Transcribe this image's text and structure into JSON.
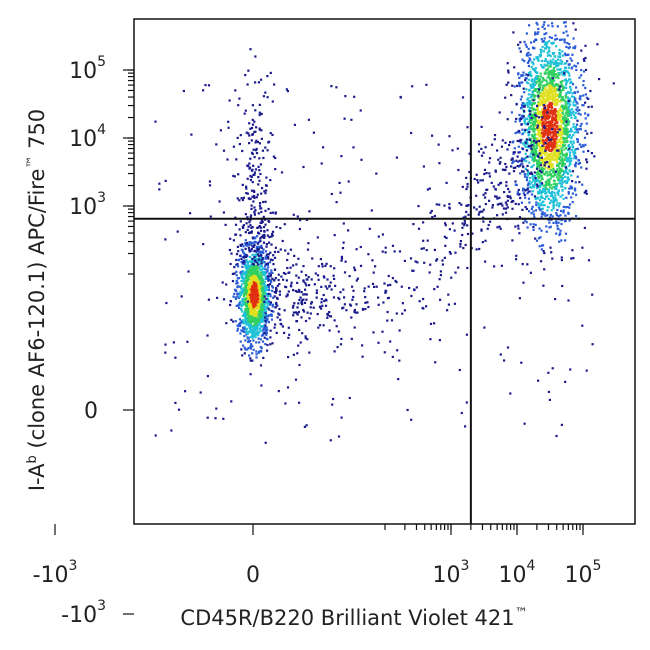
{
  "chart_data": {
    "type": "scatter",
    "title": "",
    "xlabel_parts": [
      "CD45R/B220 Brilliant Violet 421",
      "™"
    ],
    "ylabel_parts": [
      "I-A",
      "b",
      " (clone AF6-120.1) APC/Fire",
      "™",
      " 750"
    ],
    "x_scale": "biexponential",
    "y_scale": "biexponential",
    "x_ticks": [
      {
        "value": -1000,
        "base": "-10",
        "exp": "3"
      },
      {
        "value": 0,
        "base": "0",
        "exp": ""
      },
      {
        "value": 1000,
        "base": "10",
        "exp": "3"
      },
      {
        "value": 10000,
        "base": "10",
        "exp": "4"
      },
      {
        "value": 100000,
        "base": "10",
        "exp": "5"
      }
    ],
    "y_ticks": [
      {
        "value": -1000,
        "base": "-10",
        "exp": "3"
      },
      {
        "value": 0,
        "base": "0",
        "exp": ""
      },
      {
        "value": 1000,
        "base": "10",
        "exp": "3"
      },
      {
        "value": 10000,
        "base": "10",
        "exp": "4"
      },
      {
        "value": 100000,
        "base": "10",
        "exp": "5"
      }
    ],
    "quadrant_gate": {
      "x": 2000,
      "y": 650
    },
    "populations": [
      {
        "center_x": 0,
        "center_y": 50,
        "count": 1400
      },
      {
        "center_x": 30000,
        "center_y": 15000,
        "count": 2200
      }
    ],
    "density_colors": [
      "#1a1a8c",
      "#2a5bd6",
      "#20c0d8",
      "#30d060",
      "#e0e020",
      "#e03010"
    ],
    "grid": false
  }
}
